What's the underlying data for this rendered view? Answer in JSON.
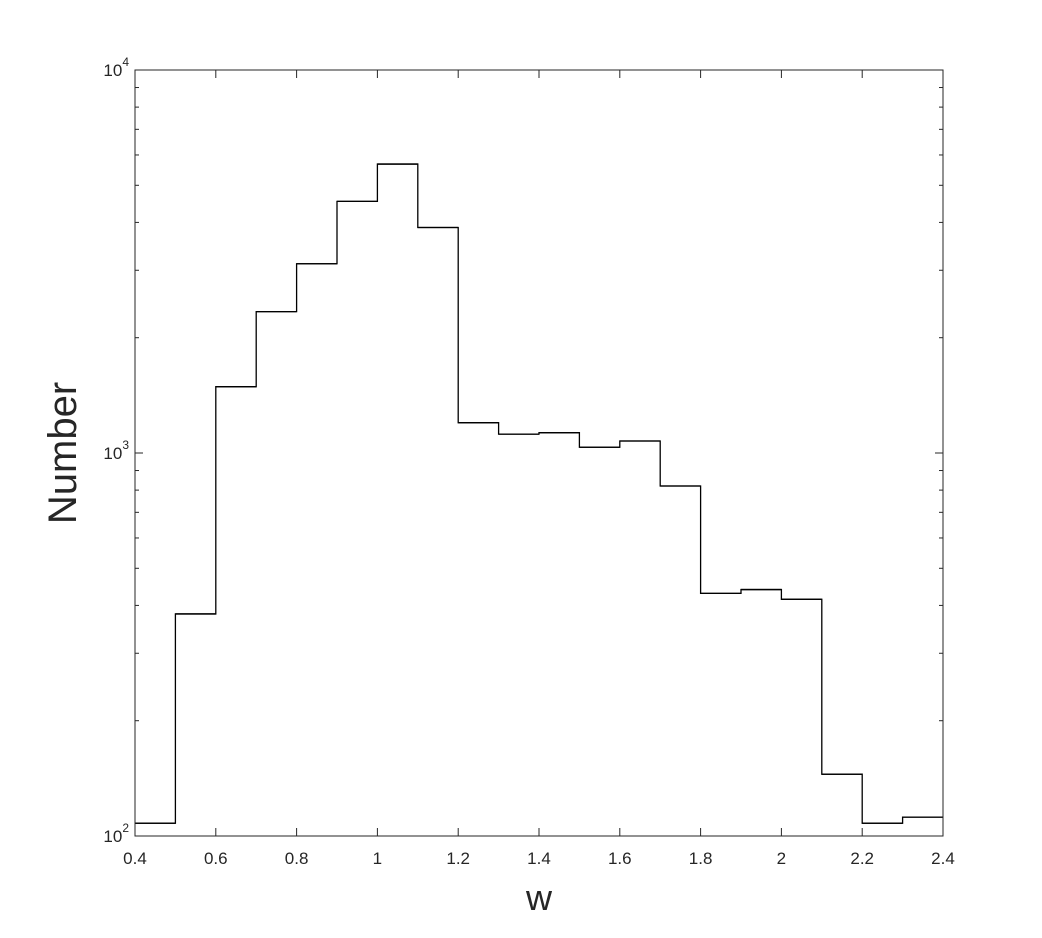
{
  "chart_data": {
    "type": "histogram",
    "title": "",
    "xlabel": "w",
    "ylabel": "Number",
    "xlim": [
      0.4,
      2.4
    ],
    "ylim": [
      100,
      10000
    ],
    "yscale": "log",
    "grid": false,
    "line_color": "#000000",
    "bin_edges": [
      0.4,
      0.5,
      0.6,
      0.7,
      0.8,
      0.9,
      1.0,
      1.1,
      1.2,
      1.3,
      1.4,
      1.5,
      1.6,
      1.7,
      1.8,
      1.9,
      2.0,
      2.1,
      2.2,
      2.3,
      2.4
    ],
    "counts": [
      108,
      380,
      1490,
      2340,
      3120,
      4540,
      5680,
      3880,
      1200,
      1120,
      1130,
      1035,
      1075,
      820,
      430,
      440,
      415,
      145,
      108,
      112
    ],
    "xticks": [
      "0.4",
      "0.6",
      "0.8",
      "1",
      "1.2",
      "1.4",
      "1.6",
      "1.8",
      "2",
      "2.2",
      "2.4"
    ],
    "xtick_values": [
      0.4,
      0.6,
      0.8,
      1.0,
      1.2,
      1.4,
      1.6,
      1.8,
      2.0,
      2.2,
      2.4
    ],
    "yticks": [
      {
        "base": "10",
        "exp": "2",
        "value": 100
      },
      {
        "base": "10",
        "exp": "3",
        "value": 1000
      },
      {
        "base": "10",
        "exp": "4",
        "value": 10000
      }
    ]
  }
}
